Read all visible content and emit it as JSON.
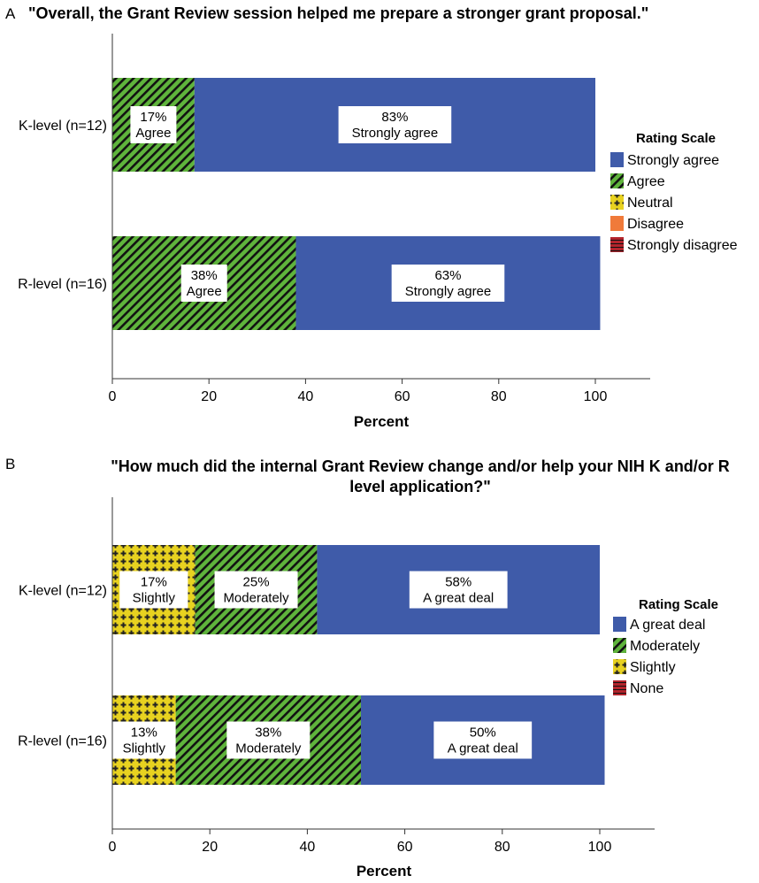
{
  "colors": {
    "strongly_agree": "#3f5ba9",
    "agree": "#5fb43c",
    "neutral": "#e8d220",
    "disagree": "#f07a3a",
    "strongly_disagree": "#b3242c"
  },
  "chart_data": [
    {
      "panel_letter": "A",
      "type": "bar",
      "orientation": "horizontal",
      "stacked": true,
      "title": "\"Overall, the Grant Review session helped me prepare a stronger grant proposal.\"",
      "xlabel": "Percent",
      "ylabel": "",
      "xlim": [
        0,
        100
      ],
      "xticks": [
        "0",
        "20",
        "40",
        "60",
        "80",
        "100"
      ],
      "categories": [
        "K-level (n=12)",
        "R-level (n=16)"
      ],
      "legend_title": "Rating Scale",
      "legend_placement": "right",
      "legend": [
        {
          "label": "Strongly agree",
          "color": "#3f5ba9",
          "pattern": "solid"
        },
        {
          "label": "Agree",
          "color": "#5fb43c",
          "pattern": "hatch"
        },
        {
          "label": "Neutral",
          "color": "#e8d220",
          "pattern": "cross"
        },
        {
          "label": "Disagree",
          "color": "#f07a3a",
          "pattern": "solid"
        },
        {
          "label": "Strongly disagree",
          "color": "#b3242c",
          "pattern": "lines"
        }
      ],
      "series": [
        {
          "name": "Agree",
          "color": "#5fb43c",
          "pattern": "hatch",
          "values": [
            17,
            38
          ],
          "labels": [
            [
              "17%",
              "Agree"
            ],
            [
              "38%",
              "Agree"
            ]
          ]
        },
        {
          "name": "Strongly agree",
          "color": "#3f5ba9",
          "pattern": "solid",
          "values": [
            83,
            63
          ],
          "labels": [
            [
              "83%",
              "Strongly agree"
            ],
            [
              "63%",
              "Strongly agree"
            ]
          ]
        }
      ]
    },
    {
      "panel_letter": "B",
      "type": "bar",
      "orientation": "horizontal",
      "stacked": true,
      "title_lines": [
        "\"How much did the internal Grant Review change and/or help your NIH K and/or R",
        "level application?\""
      ],
      "xlabel": "Percent",
      "ylabel": "",
      "xlim": [
        0,
        100
      ],
      "xticks": [
        "0",
        "20",
        "40",
        "60",
        "80",
        "100"
      ],
      "categories": [
        "K-level (n=12)",
        "R-level (n=16)"
      ],
      "legend_title": "Rating Scale",
      "legend_placement": "right",
      "legend": [
        {
          "label": "A great deal",
          "color": "#3f5ba9",
          "pattern": "solid"
        },
        {
          "label": "Moderately",
          "color": "#5fb43c",
          "pattern": "hatch"
        },
        {
          "label": "Slightly",
          "color": "#e8d220",
          "pattern": "cross"
        },
        {
          "label": "None",
          "color": "#b3242c",
          "pattern": "lines"
        }
      ],
      "series": [
        {
          "name": "Slightly",
          "color": "#e8d220",
          "pattern": "cross",
          "values": [
            17,
            13
          ],
          "labels": [
            [
              "17%",
              "Slightly"
            ],
            [
              "13%",
              "Slightly"
            ]
          ]
        },
        {
          "name": "Moderately",
          "color": "#5fb43c",
          "pattern": "hatch",
          "values": [
            25,
            38
          ],
          "labels": [
            [
              "25%",
              "Moderately"
            ],
            [
              "38%",
              "Moderately"
            ]
          ]
        },
        {
          "name": "A great deal",
          "color": "#3f5ba9",
          "pattern": "solid",
          "values": [
            58,
            50
          ],
          "labels": [
            [
              "58%",
              "A great deal"
            ],
            [
              "50%",
              "A great deal"
            ]
          ]
        }
      ]
    }
  ]
}
